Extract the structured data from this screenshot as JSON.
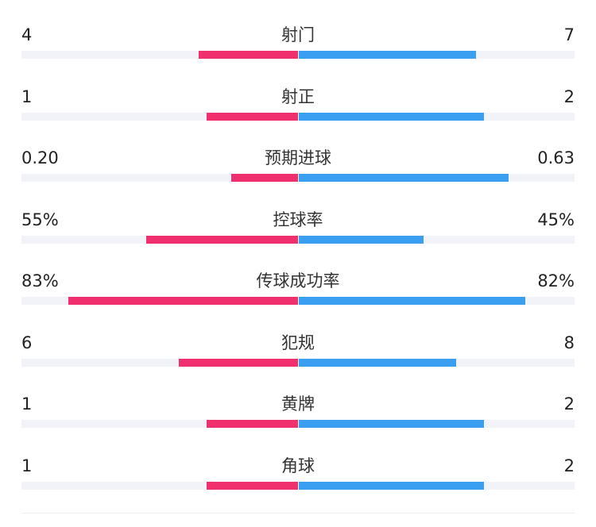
{
  "colors": {
    "left_bar": "#ef2f6e",
    "right_bar": "#3a9ff0",
    "track": "#f1f3f8"
  },
  "chart_data": {
    "type": "bar",
    "orientation": "diverging-horizontal",
    "categories": [
      "射门",
      "射正",
      "预期进球",
      "控球率",
      "传球成功率",
      "犯规",
      "黄牌",
      "角球"
    ],
    "series": [
      {
        "values": [
          4,
          1,
          0.2,
          55,
          83,
          6,
          1,
          1
        ],
        "labels": [
          "4",
          "1",
          "0.20",
          "55%",
          "83%",
          "6",
          "1",
          "1"
        ]
      },
      {
        "values": [
          7,
          2,
          0.63,
          45,
          82,
          8,
          2,
          2
        ],
        "labels": [
          "7",
          "2",
          "0.63",
          "45%",
          "82%",
          "8",
          "2",
          "2"
        ]
      }
    ],
    "bar_fraction_left": [
      0.36,
      0.33,
      0.24,
      0.55,
      0.83,
      0.43,
      0.33,
      0.33
    ],
    "bar_fraction_right": [
      0.64,
      0.67,
      0.76,
      0.45,
      0.82,
      0.57,
      0.67,
      0.67
    ],
    "grid": false,
    "legend": "none"
  }
}
